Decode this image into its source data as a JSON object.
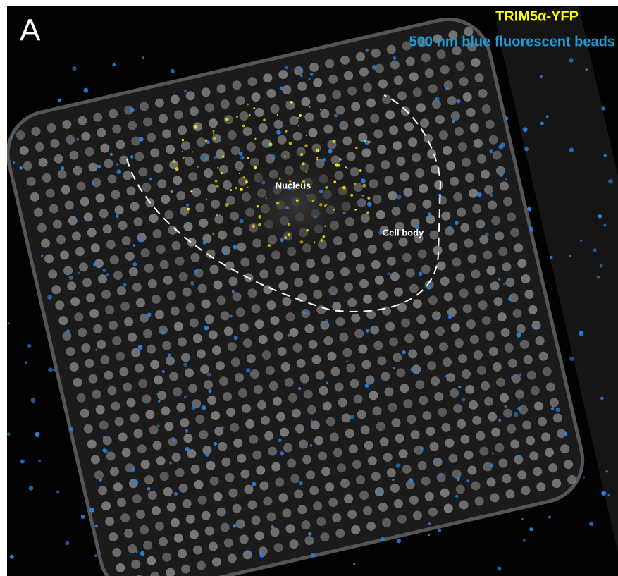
{
  "panel_label": "A",
  "legend": [
    "TRIM5α-YFP",
    "500 nm blue fluorescent beads"
  ],
  "annotations": [
    "Nucleus",
    "Cell body"
  ]
}
